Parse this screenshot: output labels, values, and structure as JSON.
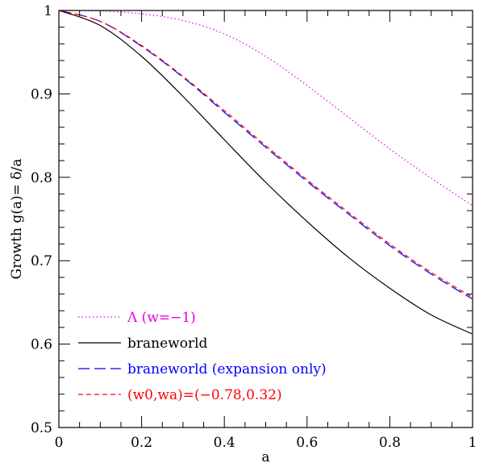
{
  "chart_data": {
    "type": "line",
    "xlabel": "a",
    "ylabel": "Growth g(a)= δ/a",
    "xlim": [
      0,
      1
    ],
    "ylim": [
      0.5,
      1
    ],
    "xticks": [
      0,
      0.2,
      0.4,
      0.6,
      0.8,
      1
    ],
    "xtick_labels": [
      "0",
      "0.2",
      "0.4",
      "0.6",
      "0.8",
      "1"
    ],
    "yticks": [
      0.5,
      0.6,
      0.7,
      0.8,
      0.9,
      1
    ],
    "ytick_labels": [
      "0.5",
      "0.6",
      "0.7",
      "0.8",
      "0.9",
      "1"
    ],
    "grid": false,
    "legend_position": "bottom-left",
    "x": [
      0,
      0.1,
      0.2,
      0.3,
      0.4,
      0.5,
      0.6,
      0.7,
      0.8,
      0.9,
      1.0
    ],
    "series": [
      {
        "name": "Λ (w=−1)",
        "color": "#e800e8",
        "dash": "dotted",
        "values": [
          1.0,
          0.9995,
          0.996,
          0.988,
          0.972,
          0.945,
          0.91,
          0.872,
          0.834,
          0.799,
          0.766
        ]
      },
      {
        "name": "braneworld",
        "color": "#000000",
        "dash": "solid",
        "values": [
          1.0,
          0.982,
          0.945,
          0.897,
          0.845,
          0.794,
          0.747,
          0.704,
          0.667,
          0.635,
          0.612
        ]
      },
      {
        "name": "braneworld (expansion only)",
        "color": "#0000ff",
        "dash": "long-dash",
        "values": [
          1.0,
          0.987,
          0.957,
          0.92,
          0.878,
          0.836,
          0.795,
          0.756,
          0.718,
          0.684,
          0.654
        ]
      },
      {
        "name": "(w0,wa)=(−0.78,0.32)",
        "color": "#ff0000",
        "dash": "short-dash",
        "values": [
          1.0,
          0.987,
          0.958,
          0.921,
          0.88,
          0.838,
          0.797,
          0.758,
          0.72,
          0.686,
          0.656
        ]
      }
    ]
  }
}
